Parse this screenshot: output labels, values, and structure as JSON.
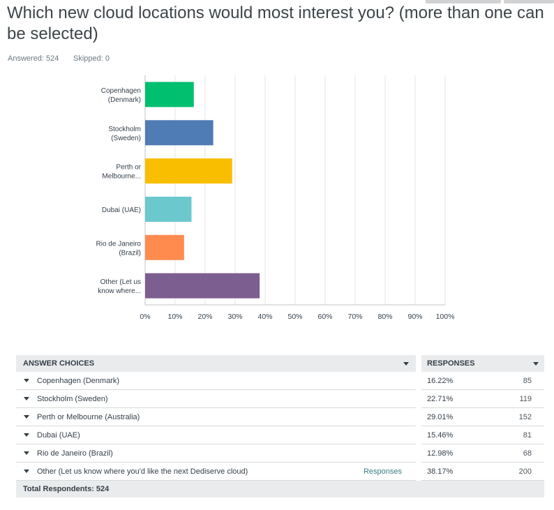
{
  "question": {
    "title": "Which new cloud locations would most interest you? (more than one can be selected)",
    "answered": "Answered: 524",
    "skipped": "Skipped: 0"
  },
  "chart_data": {
    "type": "bar",
    "orientation": "horizontal",
    "categories": [
      [
        "Copenhagen",
        "(Denmark)"
      ],
      [
        "Stockholm",
        "(Sweden)"
      ],
      [
        "Perth or",
        "Melbourne..."
      ],
      [
        "Dubai (UAE)"
      ],
      [
        "Rio de Janeiro",
        "(Brazil)"
      ],
      [
        "Other (Let us",
        "know where..."
      ]
    ],
    "values": [
      16.22,
      22.71,
      29.01,
      15.46,
      12.98,
      38.17
    ],
    "colors": [
      "#00bf6f",
      "#507cb6",
      "#f9be00",
      "#6bc8cd",
      "#ff8b4f",
      "#7d5e90"
    ],
    "xlim": [
      0,
      100
    ],
    "xticks": [
      "0%",
      "10%",
      "20%",
      "30%",
      "40%",
      "50%",
      "60%",
      "70%",
      "80%",
      "90%",
      "100%"
    ],
    "grid": true
  },
  "table": {
    "headers": {
      "choices": "ANSWER CHOICES",
      "responses": "RESPONSES"
    },
    "rows": [
      {
        "choice": "Copenhagen (Denmark)",
        "link": "",
        "pct": "16.22%",
        "count": "85"
      },
      {
        "choice": "Stockholm (Sweden)",
        "link": "",
        "pct": "22.71%",
        "count": "119"
      },
      {
        "choice": "Perth or Melbourne (Australia)",
        "link": "",
        "pct": "29.01%",
        "count": "152"
      },
      {
        "choice": "Dubai (UAE)",
        "link": "",
        "pct": "15.46%",
        "count": "81"
      },
      {
        "choice": "Rio de Janeiro (Brazil)",
        "link": "",
        "pct": "12.98%",
        "count": "68"
      },
      {
        "choice": "Other (Let us know where you'd like the next Dediserve cloud)",
        "link": "Responses",
        "pct": "38.17%",
        "count": "200"
      }
    ],
    "total": "Total Respondents: 524"
  }
}
